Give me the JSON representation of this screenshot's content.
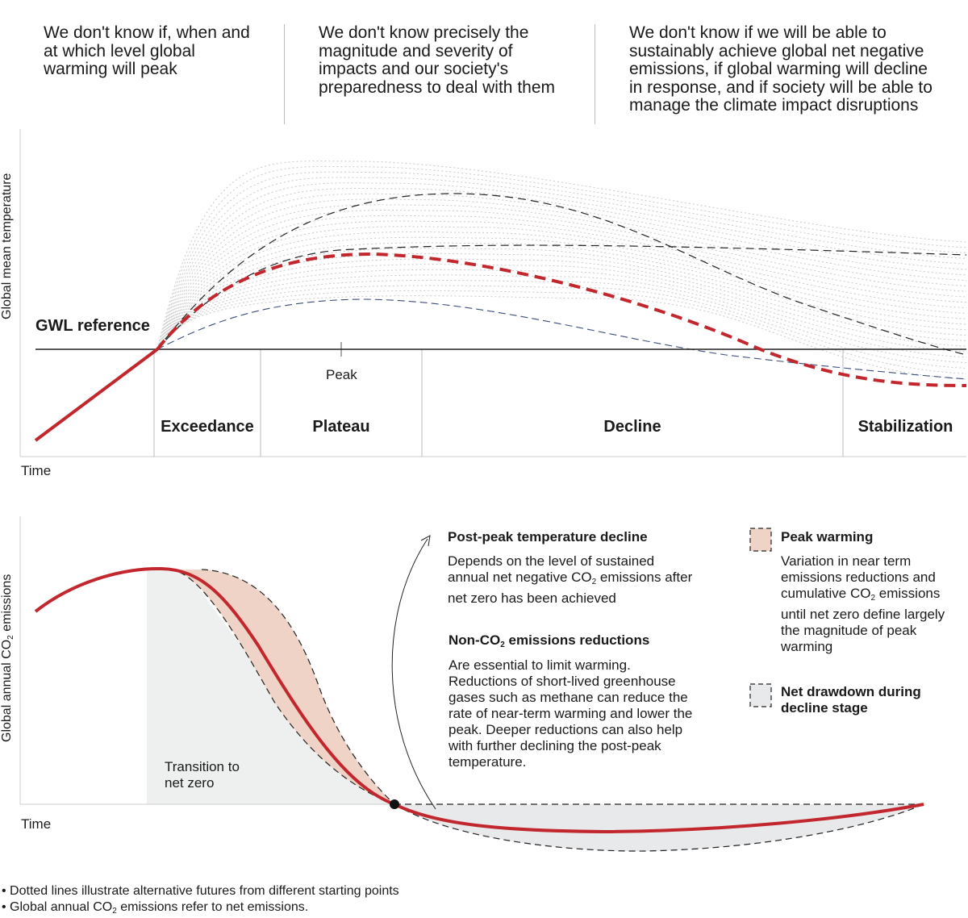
{
  "questions": [
    "We don't know if, when and\nat which level global\nwarming will peak",
    "We don't know precisely the\nmagnitude and severity of\nimpacts and our society's\npreparedness to deal with them",
    "We don't know if we will be able to\nsustainably achieve global net negative\nemissions, if global warming will decline\nin response, and if society will be able to\nmanage the climate impact disruptions"
  ],
  "top_panel": {
    "y_axis_label": "Global mean temperature",
    "reference_label": "GWL reference",
    "x_axis_label": "Time",
    "peak_label": "Peak",
    "stages": [
      "Exceedance",
      "Plateau",
      "Decline",
      "Stabilization"
    ]
  },
  "bottom_panel": {
    "y_axis_label_pre": "Global annual CO",
    "y_axis_label_sub": "2",
    "y_axis_label_post": " emissions",
    "x_axis_label": "Time",
    "transition_label": "Transition to\nnet zero",
    "annotations": {
      "post_peak_title": "Post-peak temperature decline",
      "post_peak_text_a": "Depends on the level of sustained\nannual net negative CO",
      "post_peak_text_sub": "2",
      "post_peak_text_b": " emissions after\nnet zero has been achieved",
      "non_co2_title_pre": "Non-CO",
      "non_co2_title_sub": "2",
      "non_co2_title_post": " emissions reductions",
      "non_co2_text": "Are essential to limit warming.\nReductions of short-lived greenhouse\ngases such as methane can reduce the\nrate of near-term warming and lower the\npeak. Deeper reductions can also help\nwith further declining the post-peak\ntemperature."
    },
    "legend": {
      "peak_warming_title": "Peak warming",
      "peak_warming_text_a": "Variation in near term\nemissions reductions and\ncumulative CO",
      "peak_warming_text_sub": "2",
      "peak_warming_text_b": " emissions\nuntil net zero define largely\nthe magnitude of peak\nwarming",
      "net_drawdown_title": "Net drawdown during\ndecline stage"
    }
  },
  "footnotes": {
    "note1": "Dotted lines illustrate alternative futures from different starting points",
    "note2_pre": "Global annual CO",
    "note2_sub": "2",
    "note2_post": " emissions refer to net emissions."
  },
  "colors": {
    "main_line": "#c1272d",
    "peak_fill": "#f0d3c7",
    "drawdown_fill": "#e8e9eb",
    "transition_fill": "#eef0f0",
    "dotted": "#c8c8c8",
    "blue_dash": "#3a4d7a"
  }
}
